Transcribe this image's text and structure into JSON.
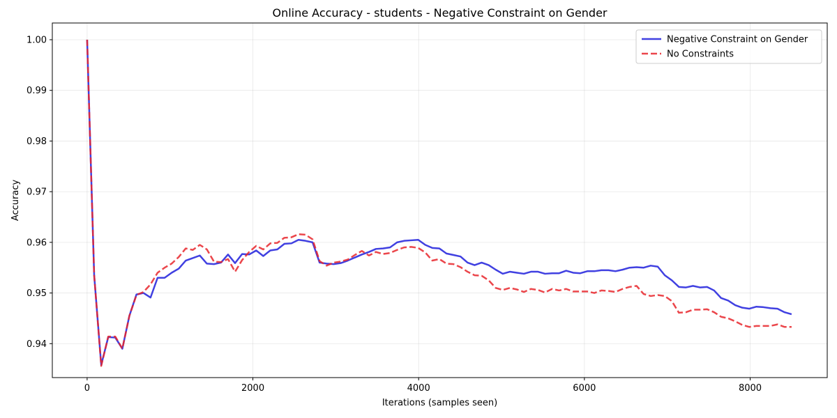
{
  "chart_data": {
    "type": "line",
    "title": "Online Accuracy - students - Negative Constraint on Gender",
    "xlabel": "Iterations (samples seen)",
    "ylabel": "Accuracy",
    "xlim": [
      -420,
      8930
    ],
    "ylim": [
      0.9333,
      1.0033
    ],
    "xticks": [
      0,
      2000,
      4000,
      6000,
      8000
    ],
    "xtick_labels": [
      "0",
      "2000",
      "4000",
      "6000",
      "8000"
    ],
    "yticks": [
      0.94,
      0.95,
      0.96,
      0.97,
      0.98,
      0.99,
      1.0
    ],
    "ytick_labels": [
      "0.94",
      "0.95",
      "0.96",
      "0.97",
      "0.98",
      "0.99",
      "1.00"
    ],
    "grid": true,
    "legend_position": "top-right",
    "series": [
      {
        "name": "Negative Constraint on Gender",
        "color": "#1f1fdc",
        "style": "solid",
        "points": [
          [
            0,
            1.0
          ],
          [
            85,
            0.9535
          ],
          [
            170,
            0.9358
          ],
          [
            255,
            0.9413
          ],
          [
            340,
            0.9412
          ],
          [
            425,
            0.939
          ],
          [
            510,
            0.9455
          ],
          [
            595,
            0.9497
          ],
          [
            680,
            0.95
          ],
          [
            765,
            0.9491
          ],
          [
            850,
            0.953
          ],
          [
            935,
            0.953
          ],
          [
            1020,
            0.954
          ],
          [
            1105,
            0.9548
          ],
          [
            1190,
            0.9564
          ],
          [
            1275,
            0.9569
          ],
          [
            1360,
            0.9574
          ],
          [
            1445,
            0.9558
          ],
          [
            1530,
            0.9557
          ],
          [
            1615,
            0.956
          ],
          [
            1700,
            0.9576
          ],
          [
            1785,
            0.9559
          ],
          [
            1870,
            0.9577
          ],
          [
            1955,
            0.9576
          ],
          [
            2040,
            0.9584
          ],
          [
            2125,
            0.9573
          ],
          [
            2210,
            0.9584
          ],
          [
            2295,
            0.9586
          ],
          [
            2380,
            0.9597
          ],
          [
            2465,
            0.9598
          ],
          [
            2550,
            0.9605
          ],
          [
            2635,
            0.9603
          ],
          [
            2720,
            0.96
          ],
          [
            2805,
            0.956
          ],
          [
            2890,
            0.9558
          ],
          [
            2975,
            0.9557
          ],
          [
            3060,
            0.9559
          ],
          [
            3145,
            0.9564
          ],
          [
            3230,
            0.957
          ],
          [
            3315,
            0.9576
          ],
          [
            3400,
            0.9581
          ],
          [
            3485,
            0.9587
          ],
          [
            3570,
            0.9588
          ],
          [
            3655,
            0.959
          ],
          [
            3740,
            0.96
          ],
          [
            3825,
            0.9603
          ],
          [
            3910,
            0.9604
          ],
          [
            3995,
            0.9605
          ],
          [
            4080,
            0.9595
          ],
          [
            4165,
            0.9589
          ],
          [
            4250,
            0.9588
          ],
          [
            4335,
            0.9578
          ],
          [
            4420,
            0.9575
          ],
          [
            4505,
            0.9572
          ],
          [
            4590,
            0.956
          ],
          [
            4675,
            0.9555
          ],
          [
            4760,
            0.956
          ],
          [
            4845,
            0.9555
          ],
          [
            4930,
            0.9546
          ],
          [
            5015,
            0.9538
          ],
          [
            5100,
            0.9542
          ],
          [
            5185,
            0.954
          ],
          [
            5270,
            0.9538
          ],
          [
            5355,
            0.9542
          ],
          [
            5440,
            0.9542
          ],
          [
            5525,
            0.9538
          ],
          [
            5610,
            0.9539
          ],
          [
            5695,
            0.9539
          ],
          [
            5780,
            0.9544
          ],
          [
            5865,
            0.954
          ],
          [
            5950,
            0.9539
          ],
          [
            6035,
            0.9543
          ],
          [
            6120,
            0.9543
          ],
          [
            6205,
            0.9545
          ],
          [
            6290,
            0.9545
          ],
          [
            6375,
            0.9543
          ],
          [
            6460,
            0.9546
          ],
          [
            6545,
            0.955
          ],
          [
            6630,
            0.9551
          ],
          [
            6715,
            0.955
          ],
          [
            6800,
            0.9554
          ],
          [
            6885,
            0.9552
          ],
          [
            6970,
            0.9535
          ],
          [
            7055,
            0.9525
          ],
          [
            7140,
            0.9512
          ],
          [
            7225,
            0.9511
          ],
          [
            7310,
            0.9514
          ],
          [
            7395,
            0.9511
          ],
          [
            7480,
            0.9512
          ],
          [
            7565,
            0.9505
          ],
          [
            7650,
            0.949
          ],
          [
            7735,
            0.9485
          ],
          [
            7820,
            0.9476
          ],
          [
            7905,
            0.9471
          ],
          [
            7990,
            0.9469
          ],
          [
            8075,
            0.9473
          ],
          [
            8160,
            0.9472
          ],
          [
            8245,
            0.947
          ],
          [
            8330,
            0.9469
          ],
          [
            8415,
            0.9462
          ],
          [
            8500,
            0.9458
          ]
        ]
      },
      {
        "name": "No Constraints",
        "color": "#e8262c",
        "style": "dashed",
        "points": [
          [
            0,
            1.0
          ],
          [
            85,
            0.9535
          ],
          [
            170,
            0.9356
          ],
          [
            255,
            0.9414
          ],
          [
            340,
            0.9414
          ],
          [
            425,
            0.939
          ],
          [
            510,
            0.9455
          ],
          [
            595,
            0.9496
          ],
          [
            680,
            0.9502
          ],
          [
            765,
            0.9517
          ],
          [
            850,
            0.954
          ],
          [
            935,
            0.955
          ],
          [
            1020,
            0.9558
          ],
          [
            1105,
            0.9571
          ],
          [
            1190,
            0.9588
          ],
          [
            1275,
            0.9585
          ],
          [
            1360,
            0.9595
          ],
          [
            1445,
            0.9586
          ],
          [
            1530,
            0.9562
          ],
          [
            1615,
            0.9561
          ],
          [
            1700,
            0.9567
          ],
          [
            1785,
            0.9542
          ],
          [
            1870,
            0.9565
          ],
          [
            1955,
            0.9581
          ],
          [
            2040,
            0.9593
          ],
          [
            2125,
            0.9586
          ],
          [
            2210,
            0.9598
          ],
          [
            2295,
            0.9599
          ],
          [
            2380,
            0.9609
          ],
          [
            2465,
            0.961
          ],
          [
            2550,
            0.9616
          ],
          [
            2635,
            0.9615
          ],
          [
            2720,
            0.9606
          ],
          [
            2805,
            0.9563
          ],
          [
            2890,
            0.9554
          ],
          [
            2975,
            0.956
          ],
          [
            3060,
            0.9562
          ],
          [
            3145,
            0.9566
          ],
          [
            3230,
            0.9575
          ],
          [
            3315,
            0.9583
          ],
          [
            3400,
            0.9574
          ],
          [
            3485,
            0.9581
          ],
          [
            3570,
            0.9577
          ],
          [
            3655,
            0.9579
          ],
          [
            3740,
            0.9585
          ],
          [
            3825,
            0.959
          ],
          [
            3910,
            0.9591
          ],
          [
            3995,
            0.9589
          ],
          [
            4080,
            0.958
          ],
          [
            4165,
            0.9564
          ],
          [
            4250,
            0.9567
          ],
          [
            4335,
            0.9558
          ],
          [
            4420,
            0.9557
          ],
          [
            4505,
            0.9551
          ],
          [
            4590,
            0.9542
          ],
          [
            4675,
            0.9535
          ],
          [
            4760,
            0.9534
          ],
          [
            4845,
            0.9525
          ],
          [
            4930,
            0.951
          ],
          [
            5015,
            0.9506
          ],
          [
            5100,
            0.951
          ],
          [
            5185,
            0.9507
          ],
          [
            5270,
            0.9502
          ],
          [
            5355,
            0.9508
          ],
          [
            5440,
            0.9506
          ],
          [
            5525,
            0.9501
          ],
          [
            5610,
            0.9508
          ],
          [
            5695,
            0.9505
          ],
          [
            5780,
            0.9508
          ],
          [
            5865,
            0.9503
          ],
          [
            5950,
            0.9503
          ],
          [
            6035,
            0.9503
          ],
          [
            6120,
            0.95
          ],
          [
            6205,
            0.9505
          ],
          [
            6290,
            0.9504
          ],
          [
            6375,
            0.9502
          ],
          [
            6460,
            0.9508
          ],
          [
            6545,
            0.9512
          ],
          [
            6630,
            0.9514
          ],
          [
            6715,
            0.9498
          ],
          [
            6800,
            0.9494
          ],
          [
            6885,
            0.9496
          ],
          [
            6970,
            0.9494
          ],
          [
            7055,
            0.9484
          ],
          [
            7140,
            0.9461
          ],
          [
            7225,
            0.9462
          ],
          [
            7310,
            0.9467
          ],
          [
            7395,
            0.9467
          ],
          [
            7480,
            0.9468
          ],
          [
            7565,
            0.9462
          ],
          [
            7650,
            0.9453
          ],
          [
            7735,
            0.945
          ],
          [
            7820,
            0.9444
          ],
          [
            7905,
            0.9437
          ],
          [
            7990,
            0.9433
          ],
          [
            8075,
            0.9435
          ],
          [
            8160,
            0.9435
          ],
          [
            8245,
            0.9435
          ],
          [
            8330,
            0.9438
          ],
          [
            8415,
            0.9433
          ],
          [
            8500,
            0.9433
          ]
        ]
      }
    ]
  }
}
